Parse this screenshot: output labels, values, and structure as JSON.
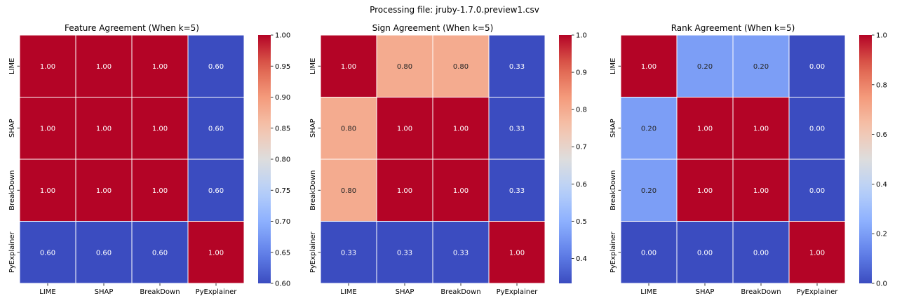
{
  "figure": {
    "suptitle": "Processing file: jruby-1.7.0.preview1.csv"
  },
  "colors": {
    "cmap": "coolwarm",
    "grid_line": "#ffffff",
    "text_dark": "#262626",
    "text_light": "#ffffff"
  },
  "chart_data": [
    {
      "type": "heatmap",
      "title": "Feature Agreement (When k=5)",
      "x_labels": [
        "LIME",
        "SHAP",
        "BreakDown",
        "PyExplainer"
      ],
      "y_labels": [
        "LIME",
        "SHAP",
        "BreakDown",
        "PyExplainer"
      ],
      "values": [
        [
          1.0,
          1.0,
          1.0,
          0.6
        ],
        [
          1.0,
          1.0,
          1.0,
          0.6
        ],
        [
          1.0,
          1.0,
          1.0,
          0.6
        ],
        [
          0.6,
          0.6,
          0.6,
          1.0
        ]
      ],
      "annotations": [
        [
          "1.00",
          "1.00",
          "1.00",
          "0.60"
        ],
        [
          "1.00",
          "1.00",
          "1.00",
          "0.60"
        ],
        [
          "1.00",
          "1.00",
          "1.00",
          "0.60"
        ],
        [
          "0.60",
          "0.60",
          "0.60",
          "1.00"
        ]
      ],
      "vmin": 0.6,
      "vmax": 1.0,
      "colorbar_ticks": [
        0.6,
        0.65,
        0.7,
        0.75,
        0.8,
        0.85,
        0.9,
        0.95,
        1.0
      ],
      "colorbar_tick_labels": [
        "0.60",
        "0.65",
        "0.70",
        "0.75",
        "0.80",
        "0.85",
        "0.90",
        "0.95",
        "1.00"
      ]
    },
    {
      "type": "heatmap",
      "title": "Sign Agreement (When k=5)",
      "x_labels": [
        "LIME",
        "SHAP",
        "BreakDown",
        "PyExplainer"
      ],
      "y_labels": [
        "LIME",
        "SHAP",
        "BreakDown",
        "PyExplainer"
      ],
      "values": [
        [
          1.0,
          0.8,
          0.8,
          0.33
        ],
        [
          0.8,
          1.0,
          1.0,
          0.33
        ],
        [
          0.8,
          1.0,
          1.0,
          0.33
        ],
        [
          0.33,
          0.33,
          0.33,
          1.0
        ]
      ],
      "annotations": [
        [
          "1.00",
          "0.80",
          "0.80",
          "0.33"
        ],
        [
          "0.80",
          "1.00",
          "1.00",
          "0.33"
        ],
        [
          "0.80",
          "1.00",
          "1.00",
          "0.33"
        ],
        [
          "0.33",
          "0.33",
          "0.33",
          "1.00"
        ]
      ],
      "vmin": 0.333,
      "vmax": 1.0,
      "colorbar_ticks": [
        0.4,
        0.5,
        0.6,
        0.7,
        0.8,
        0.9,
        1.0
      ],
      "colorbar_tick_labels": [
        "0.4",
        "0.5",
        "0.6",
        "0.7",
        "0.8",
        "0.9",
        "1.0"
      ]
    },
    {
      "type": "heatmap",
      "title": "Rank Agreement (When k=5)",
      "x_labels": [
        "LIME",
        "SHAP",
        "BreakDown",
        "PyExplainer"
      ],
      "y_labels": [
        "LIME",
        "SHAP",
        "BreakDown",
        "PyExplainer"
      ],
      "values": [
        [
          1.0,
          0.2,
          0.2,
          0.0
        ],
        [
          0.2,
          1.0,
          1.0,
          0.0
        ],
        [
          0.2,
          1.0,
          1.0,
          0.0
        ],
        [
          0.0,
          0.0,
          0.0,
          1.0
        ]
      ],
      "annotations": [
        [
          "1.00",
          "0.20",
          "0.20",
          "0.00"
        ],
        [
          "0.20",
          "1.00",
          "1.00",
          "0.00"
        ],
        [
          "0.20",
          "1.00",
          "1.00",
          "0.00"
        ],
        [
          "0.00",
          "0.00",
          "0.00",
          "1.00"
        ]
      ],
      "vmin": 0.0,
      "vmax": 1.0,
      "colorbar_ticks": [
        0.0,
        0.2,
        0.4,
        0.6,
        0.8,
        1.0
      ],
      "colorbar_tick_labels": [
        "0.0",
        "0.2",
        "0.4",
        "0.6",
        "0.8",
        "1.0"
      ]
    }
  ]
}
